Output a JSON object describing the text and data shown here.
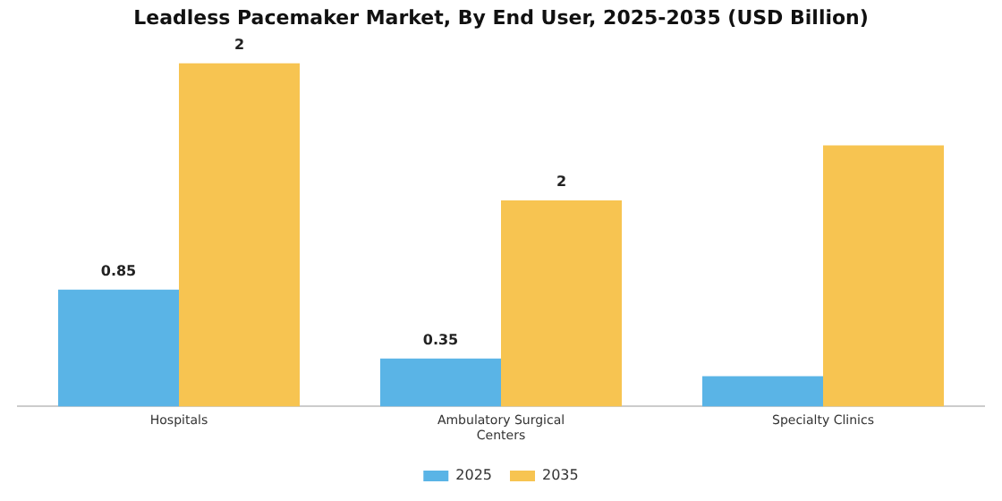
{
  "chart_data": {
    "type": "bar",
    "title": "Leadless Pacemaker Market, By End User, 2025-2035 (USD Billion)",
    "categories": [
      "Hospitals",
      "Ambulatory Surgical\nCenters",
      "Specialty Clinics"
    ],
    "series": [
      {
        "name": "2025",
        "color": "#5ab4e6",
        "values": [
          0.85,
          0.35,
          0.22
        ],
        "value_labels": [
          "0.85",
          "0.35",
          null
        ]
      },
      {
        "name": "2035",
        "color": "#f7c451",
        "values": [
          2.5,
          1.5,
          1.9
        ],
        "value_labels": [
          "2",
          "2",
          null
        ]
      }
    ],
    "legend": "bottom",
    "grid": false
  }
}
